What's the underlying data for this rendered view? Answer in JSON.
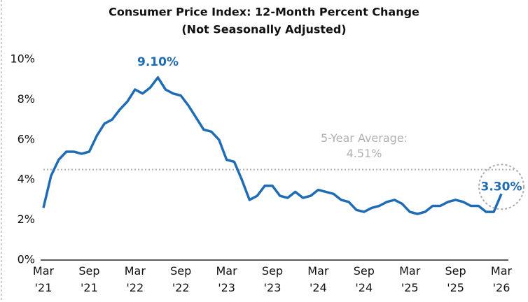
{
  "chart_data": {
    "type": "line",
    "title": "Consumer Price Index: 12-Month Percent Change",
    "subtitle": "(Not Seasonally Adjusted)",
    "categories": [
      "Mar '21",
      null,
      null,
      null,
      null,
      null,
      "Sep '21",
      null,
      null,
      null,
      null,
      null,
      "Mar '22",
      null,
      null,
      null,
      null,
      null,
      "Sep '22",
      null,
      null,
      null,
      null,
      null,
      "Mar '23",
      null,
      null,
      null,
      null,
      null,
      "Sep '23",
      null,
      null,
      null,
      null,
      null,
      "Mar '24",
      null,
      null,
      null,
      null,
      null,
      "Sep '24",
      null,
      null,
      null,
      null,
      null,
      "Mar '25",
      null,
      null,
      null,
      null,
      null,
      "Sep '25",
      null,
      null,
      null,
      null,
      null,
      "Mar '26"
    ],
    "series": [
      {
        "name": "CPI",
        "color": "#1f6cb4",
        "values": [
          2.6,
          4.2,
          5.0,
          5.4,
          5.4,
          5.3,
          5.4,
          6.2,
          6.8,
          7.0,
          7.5,
          7.9,
          8.5,
          8.3,
          8.6,
          9.1,
          8.5,
          8.3,
          8.2,
          7.7,
          7.1,
          6.5,
          6.4,
          6.0,
          5.0,
          4.9,
          4.0,
          3.0,
          3.2,
          3.7,
          3.7,
          3.2,
          3.1,
          3.4,
          3.1,
          3.2,
          3.5,
          3.4,
          3.3,
          3.0,
          2.9,
          2.5,
          2.4,
          2.6,
          2.7,
          2.9,
          3.0,
          2.8,
          2.4,
          2.3,
          2.4,
          2.7,
          2.7,
          2.9,
          3.0,
          2.9,
          2.7,
          2.7,
          2.4,
          2.4,
          3.3
        ],
        "value_labels": [
          null,
          null,
          null,
          null,
          null,
          null,
          null,
          null,
          null,
          null,
          null,
          null,
          null,
          null,
          null,
          "9.10%",
          null,
          null,
          null,
          null,
          null,
          null,
          null,
          null,
          null,
          null,
          null,
          null,
          null,
          null,
          null,
          null,
          null,
          null,
          null,
          null,
          null,
          null,
          null,
          null,
          null,
          null,
          null,
          null,
          null,
          null,
          null,
          null,
          null,
          null,
          null,
          null,
          null,
          null,
          null,
          null,
          null,
          null,
          null,
          null,
          "3.30%"
        ]
      }
    ],
    "reference_line": {
      "value": 4.51,
      "label": "5-Year Average:",
      "value_label": "4.51%",
      "color": "#b0b0b0"
    },
    "ylim": [
      0,
      10
    ],
    "yticks": [
      {
        "value": 0,
        "label": "0%"
      },
      {
        "value": 2,
        "label": "2%"
      },
      {
        "value": 4,
        "label": "4%"
      },
      {
        "value": 6,
        "label": "6%"
      },
      {
        "value": 8,
        "label": "8%"
      },
      {
        "value": 10,
        "label": "10%"
      }
    ]
  }
}
